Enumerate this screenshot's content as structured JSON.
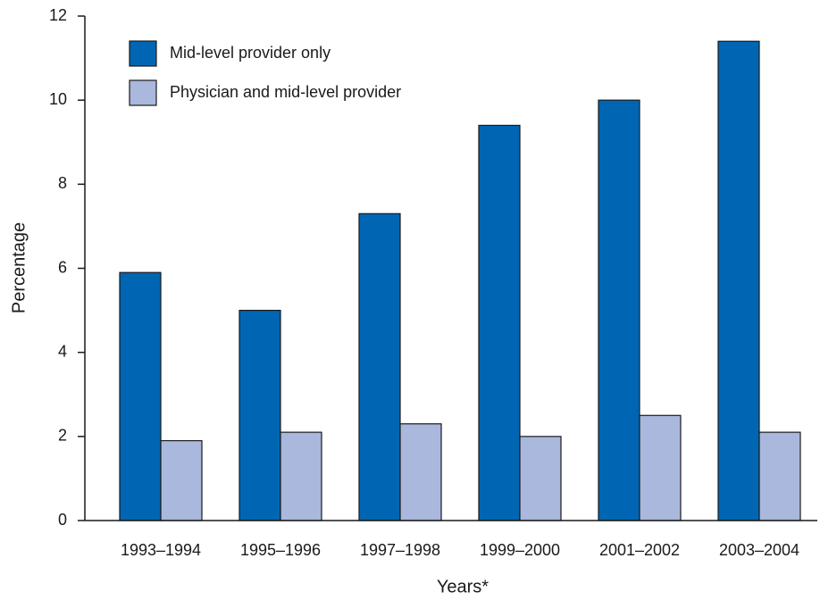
{
  "chart_data": {
    "type": "bar",
    "x_label": "Years*",
    "y_label": "Percentage",
    "categories": [
      "1993–1994",
      "1995–1996",
      "1997–1998",
      "1999–2000",
      "2001–2002",
      "2003–2004"
    ],
    "series": [
      {
        "name": "Mid-level provider only",
        "color": "#0066b3",
        "values": [
          5.9,
          5.0,
          7.3,
          9.4,
          10.0,
          11.4
        ]
      },
      {
        "name": "Physician and mid-level provider",
        "color": "#a9b8dc",
        "values": [
          1.9,
          2.1,
          2.3,
          2.0,
          2.5,
          2.1
        ]
      }
    ],
    "ylim": [
      0,
      12
    ],
    "yticks": [
      0,
      2,
      4,
      6,
      8,
      10,
      12
    ],
    "grid": false,
    "legend": "upper left"
  }
}
